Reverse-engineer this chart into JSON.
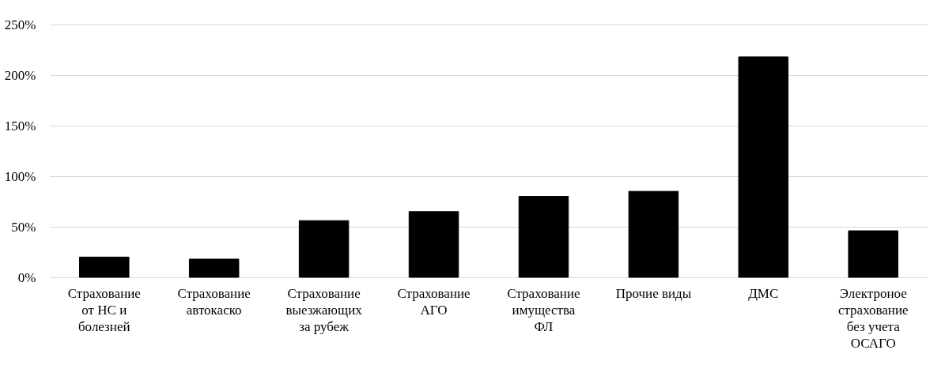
{
  "chart_data": {
    "type": "bar",
    "categories": [
      "Страхование от НС и болезней",
      "Страхование автокаско",
      "Страхование выезжающих за рубеж",
      "Страхование АГО",
      "Страхование имущества ФЛ",
      "Прочие виды",
      "ДМС",
      "Электроное страхование без учета ОСАГО"
    ],
    "values": [
      20,
      18,
      56,
      65,
      80,
      85,
      218,
      46
    ],
    "color": "#000000",
    "ylim": [
      0,
      250
    ],
    "yticks": [
      {
        "value": 0,
        "label": "0%"
      },
      {
        "value": 50,
        "label": "50%"
      },
      {
        "value": 100,
        "label": "100%"
      },
      {
        "value": 150,
        "label": "150%"
      },
      {
        "value": 200,
        "label": "200%"
      },
      {
        "value": 250,
        "label": "250%"
      }
    ],
    "grid": "y"
  }
}
